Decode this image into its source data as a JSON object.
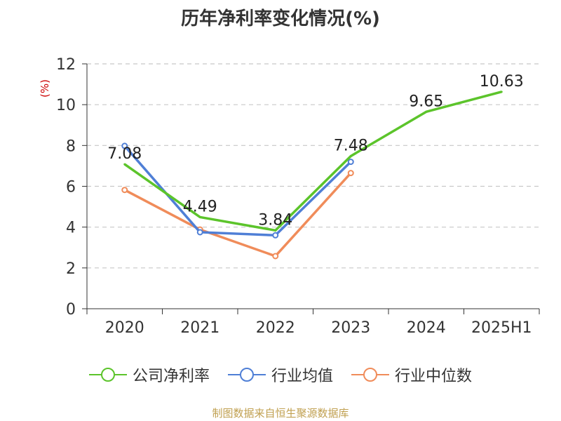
{
  "chart_data": {
    "type": "line",
    "title": "历年净利率变化情况(%)",
    "ylabel": "(%)",
    "categories": [
      "2020",
      "2021",
      "2022",
      "2023",
      "2024",
      "2025H1"
    ],
    "yticks": [
      "0",
      "2",
      "4",
      "6",
      "8",
      "10",
      "12"
    ],
    "ylim": [
      0,
      12
    ],
    "grid": true,
    "legend_position": "bottom",
    "series": [
      {
        "name": "公司净利率",
        "color": "#5cc42b",
        "values": [
          7.08,
          4.49,
          3.84,
          7.48,
          9.65,
          10.63
        ],
        "labels": [
          "7.08",
          "4.49",
          "3.84",
          "7.48",
          "9.65",
          "10.63"
        ]
      },
      {
        "name": "行业均值",
        "color": "#4f7fd6",
        "values": [
          7.98,
          3.75,
          3.6,
          7.2,
          null,
          null
        ]
      },
      {
        "name": "行业中位数",
        "color": "#f08c5a",
        "values": [
          5.82,
          3.88,
          2.58,
          6.65,
          null,
          null
        ]
      }
    ]
  },
  "source_note": "制图数据来自恒生聚源数据库"
}
